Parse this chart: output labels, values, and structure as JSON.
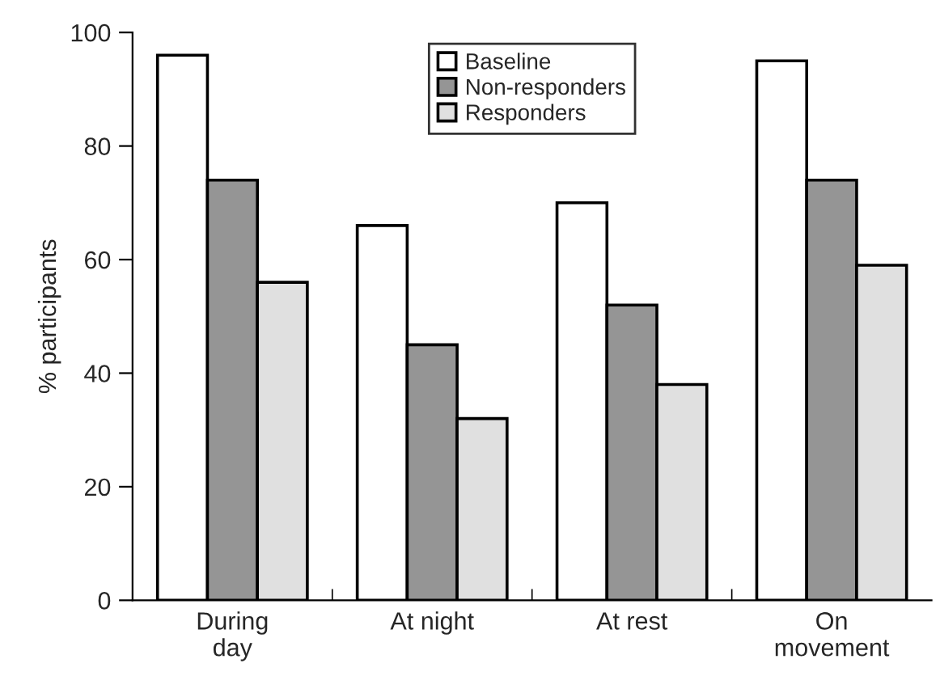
{
  "chart_data": {
    "type": "bar",
    "ylabel": "% participants",
    "categories": [
      "During\nday",
      "At night",
      "At rest",
      "On\nmovement"
    ],
    "series": [
      {
        "name": "Baseline",
        "color": "#ffffff",
        "values": [
          96,
          66,
          70,
          95
        ]
      },
      {
        "name": "Non-responders",
        "color": "#959595",
        "values": [
          74,
          45,
          52,
          74
        ]
      },
      {
        "name": "Responders",
        "color": "#e0e0e0",
        "values": [
          56,
          32,
          38,
          59
        ]
      }
    ],
    "ylim": [
      0,
      100
    ],
    "yticks": [
      0,
      20,
      40,
      60,
      80,
      100
    ],
    "grid": false,
    "legend": "top"
  }
}
